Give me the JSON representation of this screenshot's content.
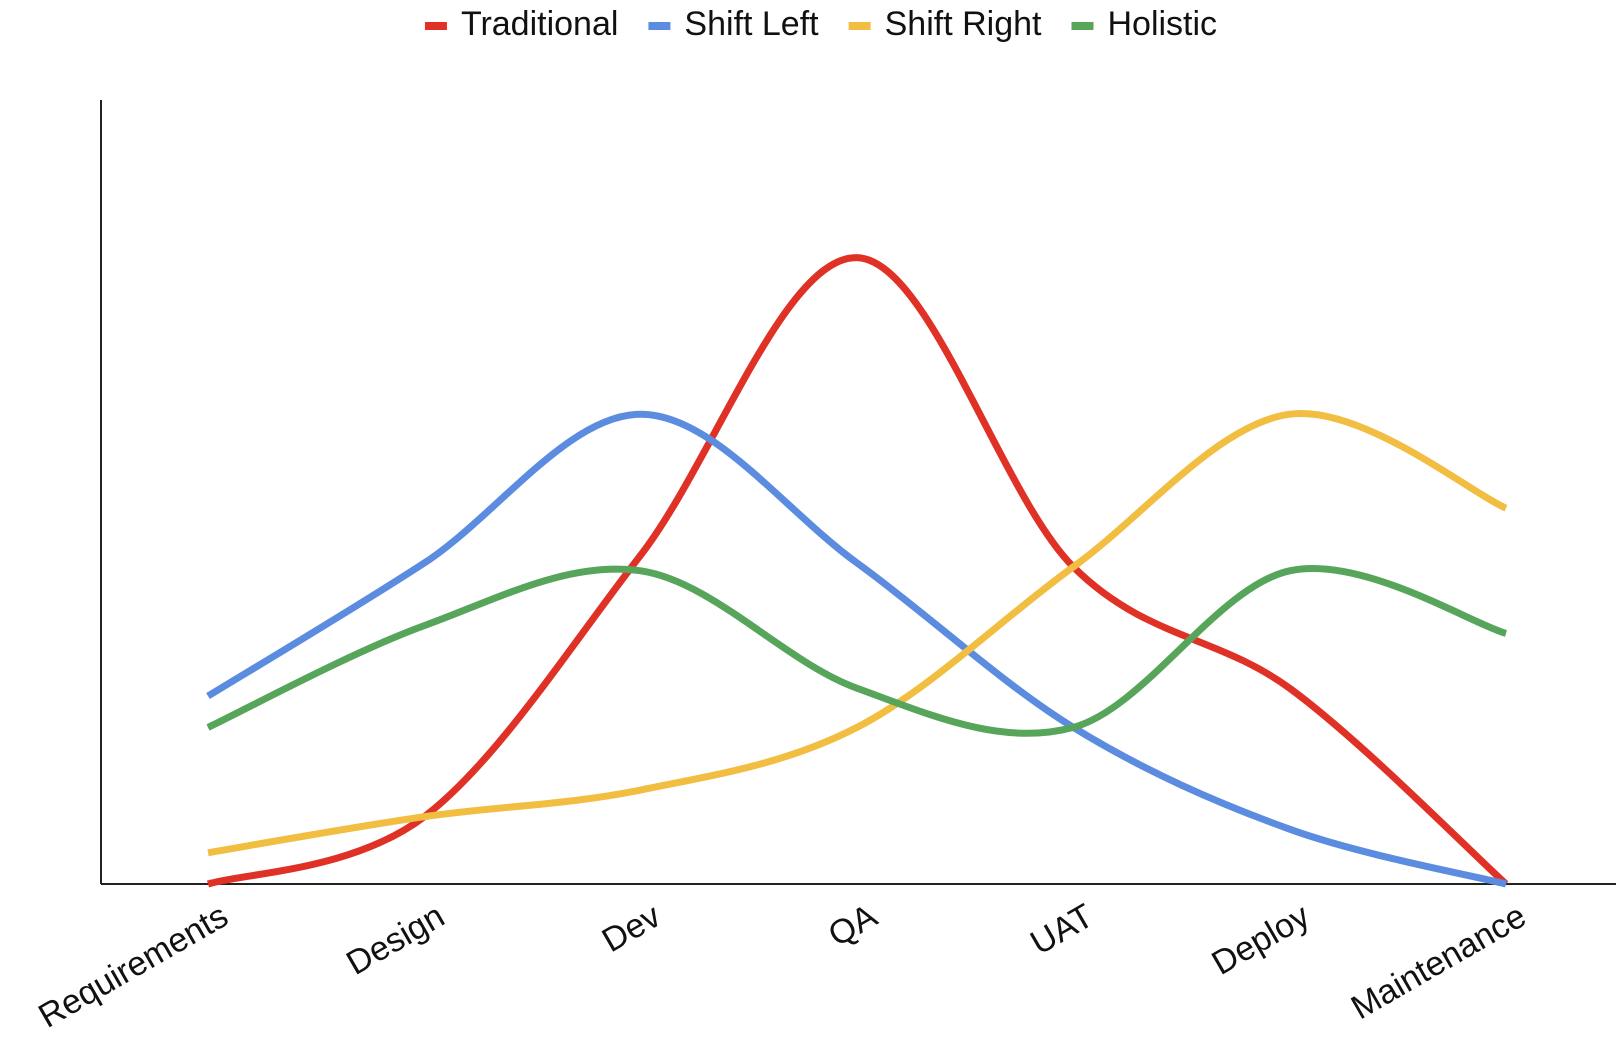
{
  "chart_data": {
    "type": "line",
    "categories": [
      "Requirements",
      "Design",
      "Dev",
      "QA",
      "UAT",
      "Deploy",
      "Maintenance"
    ],
    "series": [
      {
        "name": "Traditional",
        "color": "#e03127",
        "values": [
          0,
          8.6,
          42,
          80,
          40.5,
          25,
          0
        ]
      },
      {
        "name": "Shift Left",
        "color": "#5b8ce0",
        "values": [
          24,
          41,
          60,
          41,
          20,
          7,
          0
        ]
      },
      {
        "name": "Shift Right",
        "color": "#f1be42",
        "values": [
          4,
          8.6,
          12,
          20,
          40.5,
          60,
          48
        ]
      },
      {
        "name": "Holistic",
        "color": "#57a55a",
        "values": [
          20,
          33,
          40,
          25,
          20,
          40,
          32
        ]
      }
    ],
    "ylim": [
      0,
      100
    ],
    "legend": "top",
    "smooth": true
  }
}
